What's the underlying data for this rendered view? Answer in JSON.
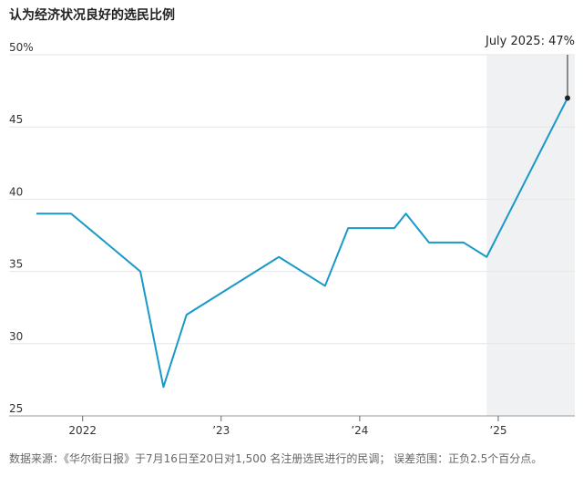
{
  "title": "认为经济状况良好的选民比例",
  "source": "数据来源：《华尔街日报》于7月16日至20日对1,500 名注册选民进行的民调； 误差范围：正负2.5个百分点。",
  "chart_data": {
    "type": "line",
    "title": "认为经济状况良好的选民比例",
    "xlabel": "",
    "ylabel": "",
    "x": [
      "2021-09",
      "2021-12",
      "2022-06",
      "2022-08",
      "2022-10",
      "2023-06",
      "2023-10",
      "2023-12",
      "2024-04",
      "2024-05",
      "2024-07",
      "2024-10",
      "2024-12",
      "2025-07"
    ],
    "series": [
      {
        "values": [
          39,
          39,
          35,
          27,
          32,
          36,
          34,
          38,
          38,
          39,
          37,
          37,
          36,
          47
        ],
        "color": "#1899c8"
      }
    ],
    "y_ticks": [
      "50%",
      "45",
      "40",
      "35",
      "30",
      "25"
    ],
    "ylim": [
      25,
      50
    ],
    "x_ticks": [
      "2022",
      "’23",
      "’24",
      "’25"
    ],
    "x_tick_dates": [
      "2022-01",
      "2023-01",
      "2024-01",
      "2025-01"
    ],
    "x_range": [
      "2021-09",
      "2025-07"
    ],
    "shaded_region": {
      "from": "2024-12",
      "to": "2025-07",
      "color": "#f0f1f2"
    },
    "annotation": {
      "text": "July 2025: 47%",
      "x": "2025-07",
      "y": 47
    },
    "grid": true
  }
}
